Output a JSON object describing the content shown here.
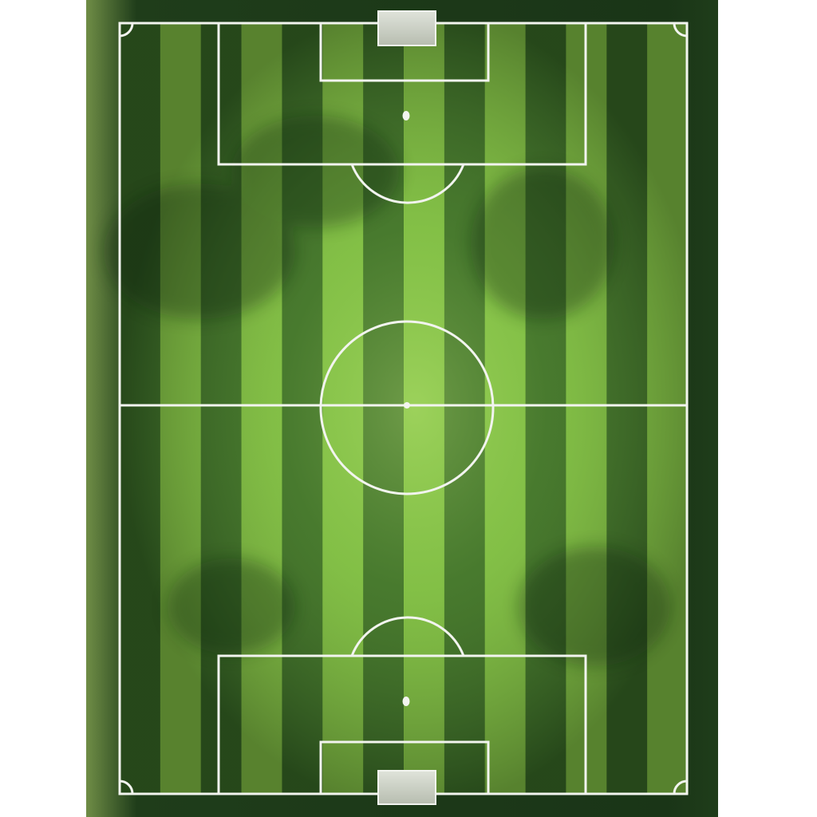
{
  "scene": {
    "subject": "soccer-pitch-top-down",
    "colors": {
      "background": "#ffffff",
      "turf_dark": "#2f5d22",
      "turf_light": "#8fcf4a",
      "turf_mid": "#5f9a35",
      "surround": "#1f3d1a",
      "lines": "#f2f4ef",
      "goal": "#c9cec4"
    },
    "pitch": {
      "stripe_count": 14,
      "orientation": "vertical",
      "features": [
        "touchlines",
        "halfway-line",
        "center-circle",
        "center-spot",
        "penalty-areas",
        "goal-areas",
        "penalty-spots",
        "penalty-arcs",
        "corner-arcs",
        "goals"
      ]
    }
  }
}
